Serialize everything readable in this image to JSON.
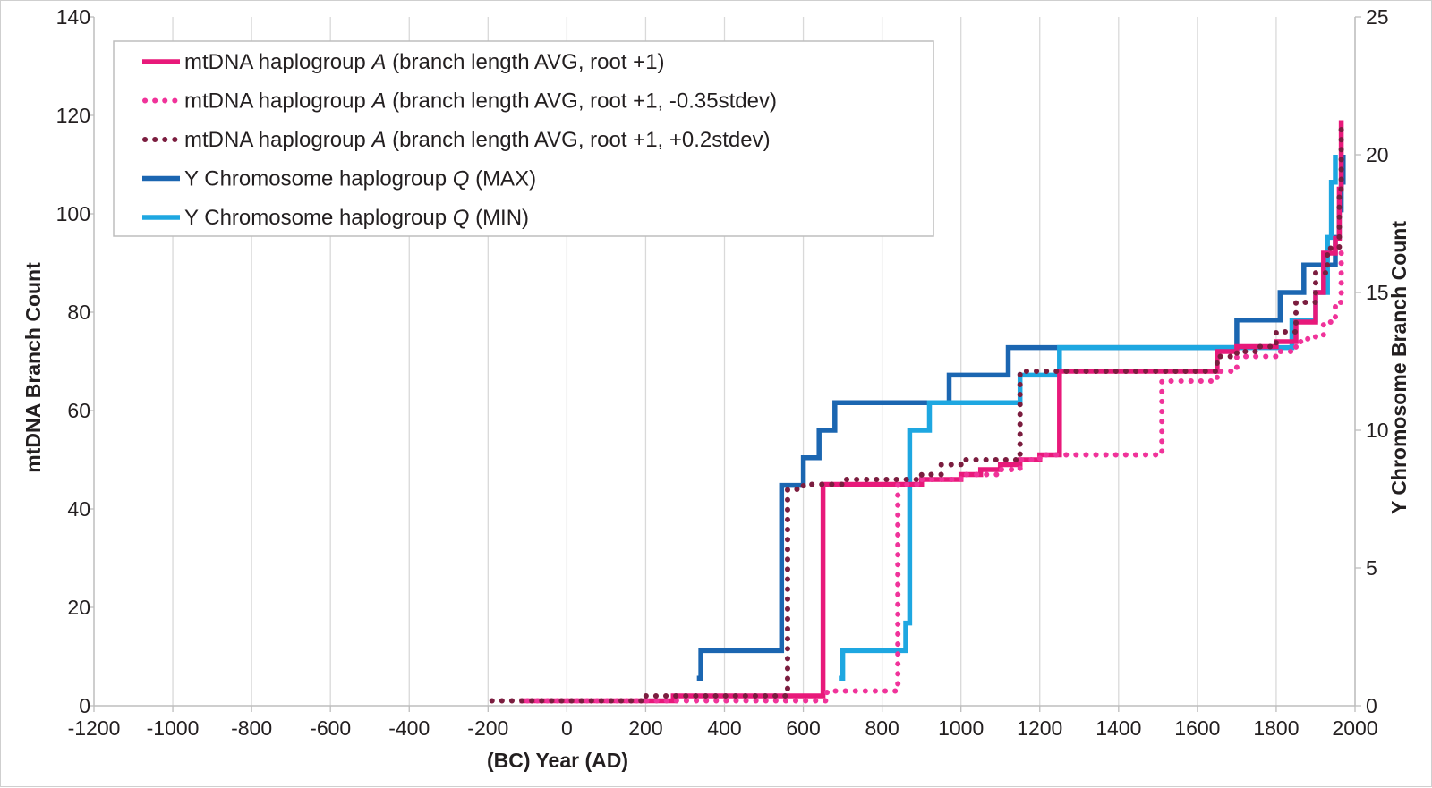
{
  "chart_data": {
    "type": "line",
    "xlabel": "(BC) Year (AD)",
    "ylabel_left": "mtDNA Branch Count",
    "ylabel_right": "Y Chromosome  Branch Count",
    "xlim": [
      -1200,
      2000
    ],
    "xticks": [
      -1200,
      -1000,
      -800,
      -600,
      -400,
      -200,
      0,
      200,
      400,
      600,
      800,
      1000,
      1200,
      1400,
      1600,
      1800,
      2000
    ],
    "ylim_left": [
      0,
      140
    ],
    "yticks_left": [
      0,
      20,
      40,
      60,
      80,
      100,
      120,
      140
    ],
    "ylim_right": [
      0,
      25
    ],
    "yticks_right": [
      0,
      5,
      10,
      15,
      20,
      25
    ],
    "grid": "vertical",
    "legend_position": "top-left",
    "series": [
      {
        "name_parts": [
          "mtDNA haplogroup ",
          "A",
          " (branch length AVG, root +1)"
        ],
        "axis": "left",
        "color": "#e8197a",
        "style": "solid",
        "x": [
          -120,
          180,
          270,
          330,
          640,
          650,
          850,
          900,
          1000,
          1050,
          1100,
          1150,
          1200,
          1250,
          1600,
          1650,
          1700,
          1800,
          1850,
          1900,
          1920,
          1950,
          1960,
          1965
        ],
        "y": [
          1,
          1,
          2,
          2,
          2,
          45,
          45,
          46,
          47,
          48,
          49,
          50,
          51,
          68,
          68,
          72,
          73,
          74,
          78,
          84,
          92,
          95,
          105,
          119
        ]
      },
      {
        "name_parts": [
          "mtDNA haplogroup ",
          "A",
          " (branch length AVG, root +1, -0.35stdev)"
        ],
        "axis": "left",
        "color": "#f0339a",
        "style": "dotted",
        "x": [
          -100,
          650,
          660,
          830,
          840,
          900,
          1000,
          1100,
          1150,
          1200,
          1500,
          1510,
          1600,
          1650,
          1700,
          1800,
          1850,
          1880,
          1920,
          1950,
          1965
        ],
        "y": [
          1,
          1,
          3,
          3,
          45,
          46,
          47,
          48,
          50,
          51,
          51,
          66,
          66,
          68,
          71,
          72,
          74,
          75,
          78,
          82,
          92
        ]
      },
      {
        "name_parts": [
          "mtDNA haplogroup ",
          "A",
          " (branch length AVG, root +1, +0.2stdev)"
        ],
        "axis": "left",
        "color": "#7b1d3f",
        "style": "dotted",
        "x": [
          -190,
          180,
          200,
          550,
          560,
          600,
          700,
          850,
          900,
          950,
          1000,
          1140,
          1150,
          1600,
          1650,
          1700,
          1750,
          1800,
          1850,
          1900,
          1930,
          1960,
          1965
        ],
        "y": [
          1,
          1,
          2,
          2,
          44,
          45,
          46,
          46,
          47,
          49,
          50,
          50,
          68,
          68,
          71,
          72,
          73,
          76,
          82,
          88,
          93,
          105,
          118
        ]
      },
      {
        "name_parts": [
          "Y Chromosome haplogroup ",
          "Q",
          " (MAX)"
        ],
        "axis": "right",
        "color": "#1b66b1",
        "style": "solid",
        "x": [
          330,
          340,
          535,
          545,
          600,
          640,
          680,
          970,
          1120,
          1700,
          1810,
          1830,
          1870,
          1900,
          1930,
          1950,
          1960,
          1965,
          1970
        ],
        "y": [
          1,
          2,
          2,
          8,
          9,
          10,
          11,
          12,
          13,
          14,
          15,
          15,
          16,
          16,
          16,
          17,
          18,
          19,
          20
        ]
      },
      {
        "name_parts": [
          "Y Chromosome haplogroup ",
          "Q",
          " (MIN)"
        ],
        "axis": "right",
        "color": "#1ea7e1",
        "style": "solid",
        "x": [
          690,
          700,
          840,
          860,
          870,
          920,
          1000,
          1150,
          1250,
          1800,
          1840,
          1860,
          1900,
          1930,
          1940,
          1950
        ],
        "y": [
          1,
          2,
          2,
          3,
          10,
          11,
          11,
          12,
          13,
          13,
          14,
          14,
          15,
          17,
          19,
          20
        ]
      }
    ]
  }
}
